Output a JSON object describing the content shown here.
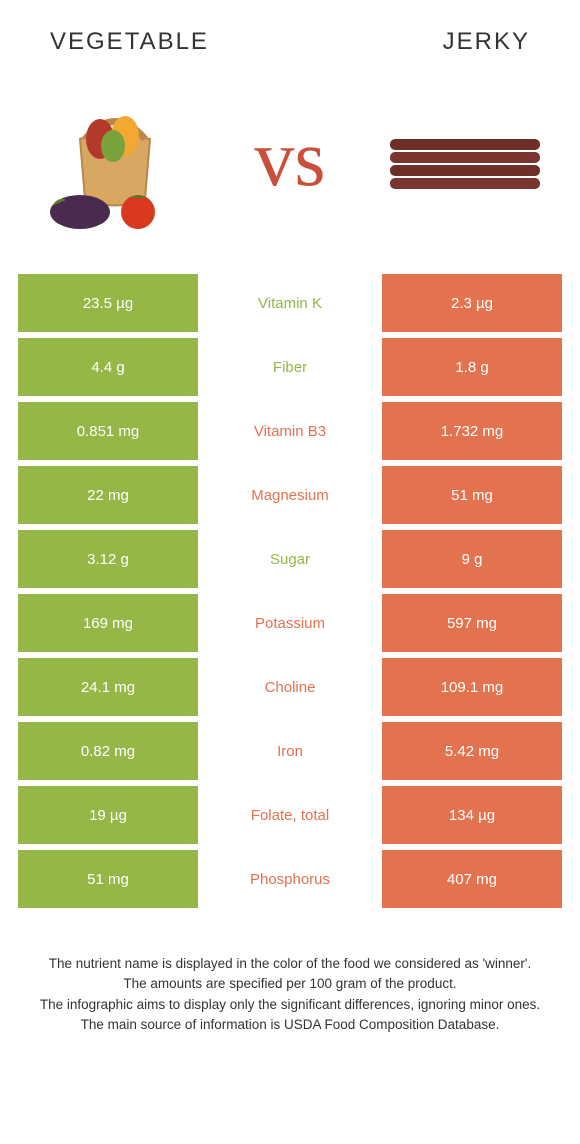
{
  "colors": {
    "green": "#94b747",
    "orange": "#e3724f",
    "midbg": "#ffffff",
    "vs": "#c94f3a",
    "text": "#333333"
  },
  "header": {
    "left": "Vegetable",
    "right": "Jerky"
  },
  "vs_label": "vs",
  "rows": [
    {
      "left": "23.5 µg",
      "label": "Vitamin K",
      "right": "2.3 µg",
      "winner": "left"
    },
    {
      "left": "4.4 g",
      "label": "Fiber",
      "right": "1.8 g",
      "winner": "left"
    },
    {
      "left": "0.851 mg",
      "label": "Vitamin B3",
      "right": "1.732 mg",
      "winner": "right"
    },
    {
      "left": "22 mg",
      "label": "Magnesium",
      "right": "51 mg",
      "winner": "right"
    },
    {
      "left": "3.12 g",
      "label": "Sugar",
      "right": "9 g",
      "winner": "left"
    },
    {
      "left": "169 mg",
      "label": "Potassium",
      "right": "597 mg",
      "winner": "right"
    },
    {
      "left": "24.1 mg",
      "label": "Choline",
      "right": "109.1 mg",
      "winner": "right"
    },
    {
      "left": "0.82 mg",
      "label": "Iron",
      "right": "5.42 mg",
      "winner": "right"
    },
    {
      "left": "19 µg",
      "label": "Folate, total",
      "right": "134 µg",
      "winner": "right"
    },
    {
      "left": "51 mg",
      "label": "Phosphorus",
      "right": "407 mg",
      "winner": "right"
    }
  ],
  "footer_lines": [
    "The nutrient name is displayed in the color of the food we considered as 'winner'.",
    "The amounts are specified per 100 gram of the product.",
    "The infographic aims to display only the significant differences, ignoring minor ones.",
    "The main source of information is USDA Food Composition Database."
  ]
}
